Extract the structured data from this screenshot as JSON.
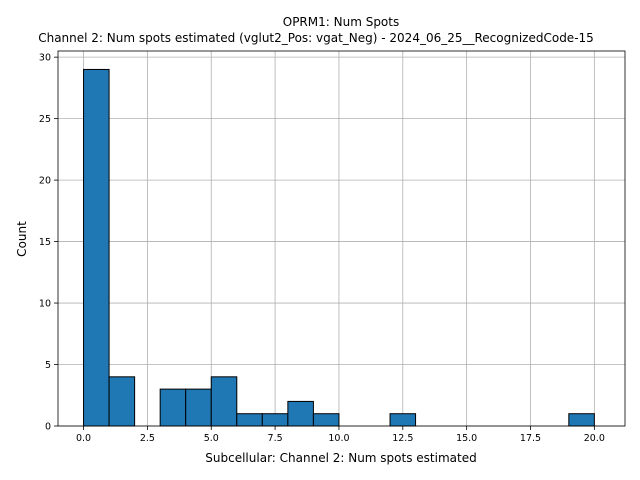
{
  "chart_data": {
    "type": "bar",
    "title": "OPRM1: Num Spots",
    "subtitle": "Channel 2: Num spots estimated (vglut2_Pos: vgat_Neg) - 2024_06_25__RecognizedCode-15",
    "xlabel": "Subcellular: Channel 2: Num spots estimated",
    "ylabel": "Count",
    "xlim": [
      -1,
      21.2
    ],
    "ylim": [
      0,
      30.5
    ],
    "xticks": [
      0.0,
      2.5,
      5.0,
      7.5,
      10.0,
      12.5,
      15.0,
      17.5,
      20.0
    ],
    "xtick_labels": [
      "0.0",
      "2.5",
      "5.0",
      "7.5",
      "10.0",
      "12.5",
      "15.0",
      "17.5",
      "20.0"
    ],
    "yticks": [
      0,
      5,
      10,
      15,
      20,
      25,
      30
    ],
    "ytick_labels": [
      "0",
      "5",
      "10",
      "15",
      "20",
      "25",
      "30"
    ],
    "grid": true,
    "bar_color": "#1f77b4",
    "bins": [
      {
        "x0": 0,
        "x1": 1,
        "count": 29
      },
      {
        "x0": 1,
        "x1": 2,
        "count": 4
      },
      {
        "x0": 3,
        "x1": 4,
        "count": 3
      },
      {
        "x0": 4,
        "x1": 5,
        "count": 3
      },
      {
        "x0": 5,
        "x1": 6,
        "count": 4
      },
      {
        "x0": 6,
        "x1": 7,
        "count": 1
      },
      {
        "x0": 7,
        "x1": 8,
        "count": 1
      },
      {
        "x0": 8,
        "x1": 9,
        "count": 2
      },
      {
        "x0": 9,
        "x1": 10,
        "count": 1
      },
      {
        "x0": 12,
        "x1": 13,
        "count": 1
      },
      {
        "x0": 19,
        "x1": 20,
        "count": 1
      }
    ]
  }
}
